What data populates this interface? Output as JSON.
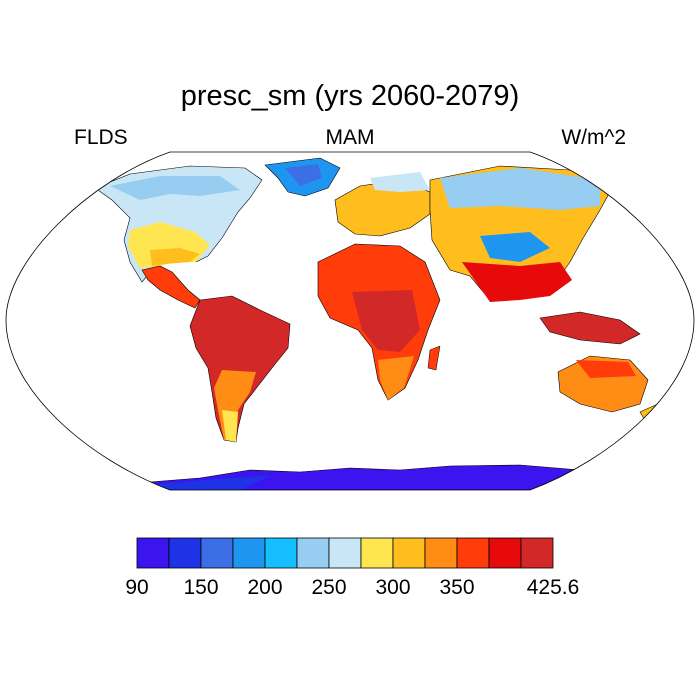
{
  "title": "presc_sm (yrs 2060-2079)",
  "left_label": "FLDS",
  "center_label": "MAM",
  "right_label": "W/m^2",
  "colorbar": {
    "colors": [
      "#3c14f0",
      "#1e32e6",
      "#3c6ee6",
      "#1e96f0",
      "#14beff",
      "#96cdf0",
      "#c8e6f5",
      "#ffe650",
      "#ffbe1e",
      "#ff8c14",
      "#ff3c0a",
      "#e60a0a",
      "#d22828"
    ],
    "tick_labels": [
      "90",
      "150",
      "200",
      "250",
      "300",
      "350",
      "425.6"
    ]
  }
}
